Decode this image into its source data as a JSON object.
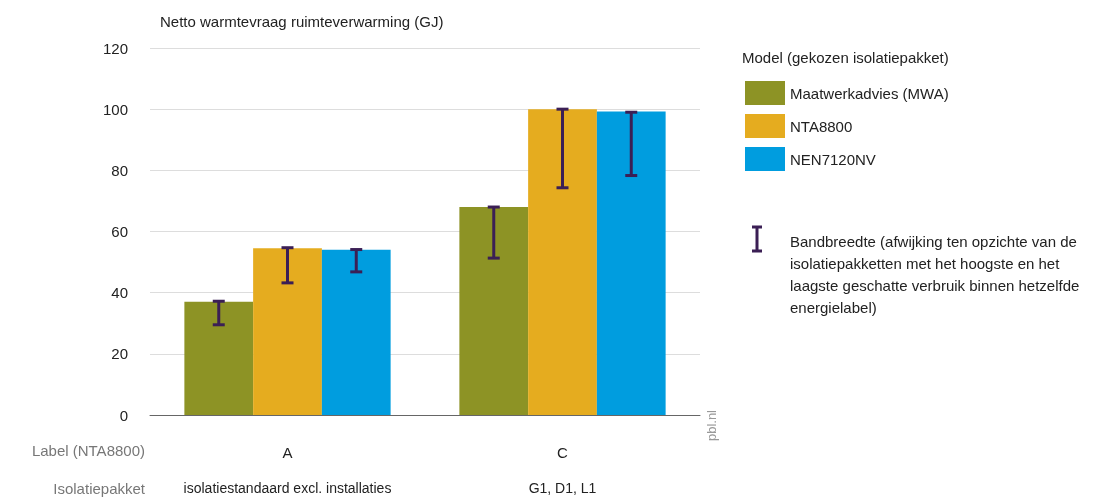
{
  "chart_data": {
    "type": "bar",
    "title": "Netto warmtevraag ruimteverwarming (GJ)",
    "xlabel": "Label (NTA8800)",
    "legend_title": "Model (gekozen isolatiepakket)",
    "categories": [
      "A",
      "C"
    ],
    "series": [
      {
        "name": "Maatwerkadvies (MWA)",
        "color": "#8d9325",
        "values": [
          37,
          68
        ],
        "errors": [
          [
            29.5,
            37.2
          ],
          [
            51.3,
            68
          ]
        ]
      },
      {
        "name": "NTA8800",
        "color": "#e5ac1f",
        "values": [
          54.5,
          100
        ],
        "errors": [
          [
            43.2,
            54.7
          ],
          [
            74.3,
            100
          ]
        ]
      },
      {
        "name": "NEN7120NV",
        "color": "#009ddf",
        "values": [
          54,
          99.2
        ],
        "errors": [
          [
            46.8,
            54.1
          ],
          [
            78.3,
            99
          ]
        ]
      }
    ],
    "ylim": [
      0,
      120
    ],
    "yticks": [
      0,
      20,
      40,
      60,
      80,
      100,
      120
    ],
    "grid": "y",
    "legend": "right",
    "annotations": [
      "Isolatiepakket",
      "isolatiestandaard excl. installaties",
      "G1, D1, L1",
      "Bandbreedte (afwijking ten opzichte van de isolatiepakketten met het hoogste en het laagste geschatte verbruik binnen hetzelfde energielabel)",
      "pbl.nl"
    ]
  }
}
